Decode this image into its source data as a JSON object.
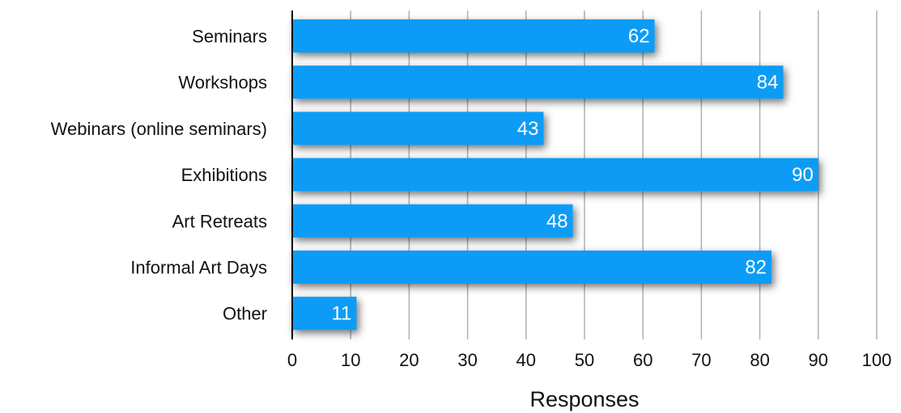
{
  "chart_data": {
    "type": "bar",
    "orientation": "horizontal",
    "categories": [
      "Seminars",
      "Workshops",
      "Webinars (online seminars)",
      "Exhibitions",
      "Art Retreats",
      "Informal Art Days",
      "Other"
    ],
    "values": [
      62,
      84,
      43,
      90,
      48,
      82,
      11
    ],
    "xlabel": "Responses",
    "ylabel": "",
    "xlim": [
      0,
      100
    ],
    "xticks": [
      "0",
      "10",
      "20",
      "30",
      "40",
      "50",
      "60",
      "70",
      "80",
      "90",
      "100"
    ],
    "grid": "vertical",
    "data_labels": true,
    "colors": {
      "bar": "#0a9cf5",
      "grid": "#b0b0b0",
      "axis": "#000000",
      "label": "#ffffff"
    }
  }
}
